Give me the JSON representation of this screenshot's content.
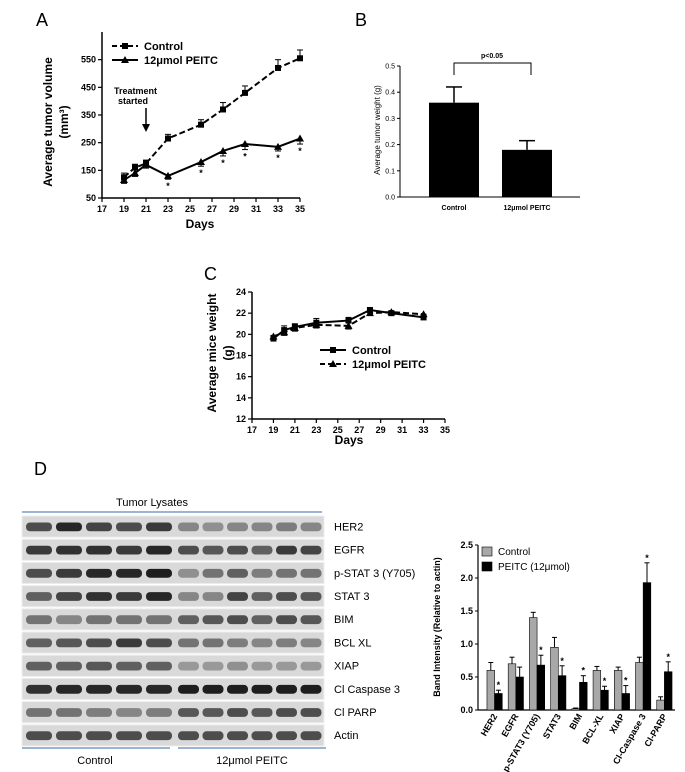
{
  "panels": {
    "A": "A",
    "B": "B",
    "C": "C",
    "D": "D"
  },
  "chart_data": [
    {
      "id": "A",
      "type": "line",
      "xlabel": "Days",
      "ylabel": "Average tumor volume",
      "ylabel_unit": "(mm³)",
      "xlim": [
        17,
        35
      ],
      "ylim": [
        50,
        650
      ],
      "xticks": [
        17,
        19,
        21,
        23,
        25,
        27,
        29,
        31,
        33,
        35
      ],
      "yticks": [
        50,
        150,
        250,
        350,
        450,
        550
      ],
      "annotation": "Treatment started",
      "annotation_line1": "Treatment",
      "annotation_line2": "started",
      "annotation_x": 21,
      "series": [
        {
          "name": "Control",
          "style": "dashed",
          "marker": "square",
          "x": [
            19,
            20,
            21,
            23,
            26,
            28,
            30,
            33,
            35
          ],
          "y": [
            125,
            160,
            175,
            265,
            315,
            370,
            430,
            520,
            555
          ],
          "err": [
            15,
            12,
            12,
            15,
            18,
            25,
            25,
            30,
            30
          ]
        },
        {
          "name": "12μmol PEITC",
          "style": "solid",
          "marker": "triangle",
          "x": [
            19,
            20,
            21,
            23,
            26,
            28,
            30,
            33,
            35
          ],
          "y": [
            115,
            140,
            170,
            130,
            180,
            220,
            245,
            235,
            265
          ],
          "err": [
            12,
            12,
            12,
            12,
            15,
            18,
            20,
            15,
            20
          ],
          "sig": [
            false,
            false,
            false,
            true,
            true,
            true,
            true,
            true,
            true
          ]
        }
      ],
      "legend": "top-left"
    },
    {
      "id": "B",
      "type": "bar",
      "ylabel": "Average tumor weight (g)",
      "categories": [
        "Control",
        "12μmol PEITC"
      ],
      "values": [
        0.36,
        0.18
      ],
      "err": [
        0.06,
        0.035
      ],
      "ylim": [
        0,
        0.5
      ],
      "yticks": [
        "0.0",
        "0.1",
        "0.2",
        "0.3",
        "0.4",
        "0.5"
      ],
      "annotation": "p<0.05"
    },
    {
      "id": "C",
      "type": "line",
      "xlabel": "Days",
      "ylabel": "Average mice weight",
      "ylabel_unit": "(g)",
      "xlim": [
        17,
        35
      ],
      "ylim": [
        12,
        24
      ],
      "xticks": [
        17,
        19,
        21,
        23,
        25,
        27,
        29,
        31,
        33,
        35
      ],
      "yticks": [
        12,
        14,
        16,
        18,
        20,
        22,
        24
      ],
      "series": [
        {
          "name": "Control",
          "style": "solid",
          "marker": "square",
          "x": [
            19,
            20,
            21,
            23,
            26,
            28,
            30,
            33
          ],
          "y": [
            19.6,
            20.4,
            20.7,
            21.1,
            21.3,
            22.3,
            22.0,
            21.6
          ],
          "err": [
            0.3,
            0.4,
            0.3,
            0.4,
            0.3,
            0.2,
            0.2,
            0.3
          ]
        },
        {
          "name": "12μmol PEITC",
          "style": "dashed",
          "marker": "triangle",
          "x": [
            19,
            20,
            21,
            23,
            26,
            28,
            30,
            33
          ],
          "y": [
            19.8,
            20.2,
            20.6,
            20.9,
            20.8,
            22.0,
            22.1,
            21.9
          ],
          "err": [
            0.3,
            0.3,
            0.3,
            0.3,
            0.3,
            0.2,
            0.2,
            0.2
          ]
        }
      ],
      "legend": "center-right"
    },
    {
      "id": "D",
      "type": "bar",
      "ylabel": "Band Intensity (Relative to actin)",
      "categories": [
        "HER2",
        "EGFR",
        "p-STAT3 (Y705)",
        "STAT3",
        "BIM",
        "BCL-XL",
        "XIAP",
        "Cl-Caspase 3",
        "Cl-PARP"
      ],
      "series": [
        {
          "name": "Control",
          "color": "#a8a8a8",
          "values": [
            0.6,
            0.7,
            1.4,
            0.95,
            0.02,
            0.6,
            0.6,
            0.72,
            0.15
          ],
          "err": [
            0.12,
            0.1,
            0.08,
            0.15,
            0.01,
            0.06,
            0.05,
            0.08,
            0.05
          ]
        },
        {
          "name": "PEITC (12μmol)",
          "color": "#000000",
          "values": [
            0.25,
            0.5,
            0.68,
            0.52,
            0.42,
            0.3,
            0.25,
            1.93,
            0.58
          ],
          "err": [
            0.05,
            0.15,
            0.15,
            0.15,
            0.1,
            0.06,
            0.12,
            0.3,
            0.15
          ],
          "sig": [
            true,
            false,
            true,
            true,
            true,
            true,
            true,
            true,
            true
          ]
        }
      ],
      "ylim": [
        0,
        2.5
      ],
      "yticks": [
        "0.0",
        "0.5",
        "1.0",
        "1.5",
        "2.0",
        "2.5"
      ],
      "legend": "top-left"
    }
  ],
  "blot": {
    "header": "Tumor Lysates",
    "labels": [
      "HER2",
      "EGFR",
      "p-STAT 3 (Y705)",
      "STAT 3",
      "BIM",
      "BCL XL",
      "XIAP",
      "Cl Caspase 3",
      "Cl PARP",
      "Actin"
    ],
    "group_control": "Control",
    "group_treated": "12μmol PEITC"
  }
}
